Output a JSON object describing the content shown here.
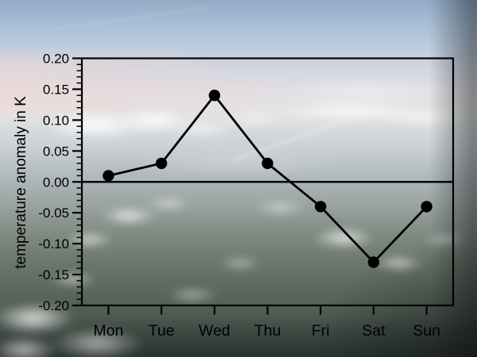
{
  "chart_data": {
    "type": "line",
    "categories": [
      "Mon",
      "Tue",
      "Wed",
      "Thu",
      "Fri",
      "Sat",
      "Sun"
    ],
    "values": [
      0.01,
      0.03,
      0.14,
      0.03,
      -0.04,
      -0.13,
      -0.04
    ],
    "title": "",
    "xlabel": "",
    "ylabel": "temperature anomaly in K",
    "ylim": [
      -0.2,
      0.2
    ],
    "ytick_step": 0.05,
    "y_minor_tick_step": 0.01,
    "ytick_labels": [
      "0.20",
      "0.15",
      "0.10",
      "0.05",
      "0.00",
      "-0.05",
      "-0.10",
      "-0.15",
      "-0.20"
    ],
    "grid": false,
    "zero_line": true,
    "legend": "none",
    "line_color": "#000000",
    "marker": "filled-circle",
    "axis_color": "#000000",
    "background_description": "aerial photograph of clouds and landscape seen from above"
  }
}
